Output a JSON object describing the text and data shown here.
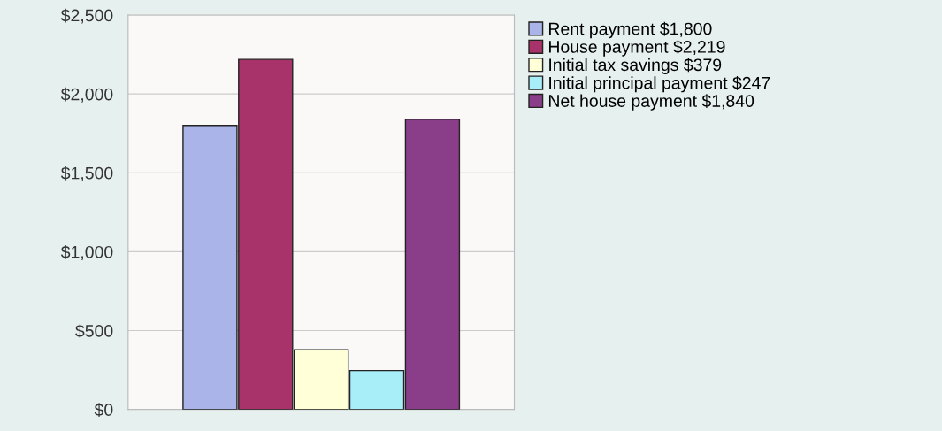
{
  "chart_data": {
    "type": "bar",
    "categories": [
      null
    ],
    "series": [
      {
        "name": "Rent payment $1,800",
        "color": "#aab4e8",
        "values": [
          1800
        ]
      },
      {
        "name": "House payment $2,219",
        "color": "#a8336a",
        "values": [
          2219
        ]
      },
      {
        "name": "Initial tax savings $379",
        "color": "#ffffd8",
        "values": [
          379
        ]
      },
      {
        "name": "Initial principal payment $247",
        "color": "#a8eef8",
        "values": [
          247
        ]
      },
      {
        "name": "Net house payment $1,840",
        "color": "#8a3e8a",
        "values": [
          1840
        ]
      }
    ],
    "ylim": [
      0,
      2500
    ],
    "yticks": [
      {
        "value": 0,
        "label": "$0"
      },
      {
        "value": 500,
        "label": "$500"
      },
      {
        "value": 1000,
        "label": "$1,000"
      },
      {
        "value": 1500,
        "label": "$1,500"
      },
      {
        "value": 2000,
        "label": "$2,000"
      },
      {
        "value": 2500,
        "label": "$2,500"
      }
    ],
    "grid": "y",
    "legend": "top right"
  }
}
